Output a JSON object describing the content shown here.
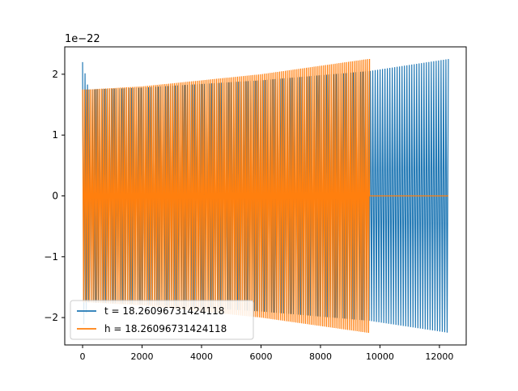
{
  "chart_data": {
    "type": "line",
    "title": "",
    "xlabel": "",
    "ylabel": "",
    "y_offset_label": "1e−22",
    "xlim": [
      -600,
      12900
    ],
    "ylim": [
      -2.45,
      2.45
    ],
    "y_scale_factor": 1e-22,
    "x_ticks": [
      0,
      2000,
      4000,
      6000,
      8000,
      10000,
      12000
    ],
    "x_tick_labels": [
      "0",
      "2000",
      "4000",
      "6000",
      "8000",
      "10000",
      "12000"
    ],
    "y_ticks": [
      -2,
      -1,
      0,
      1,
      2
    ],
    "y_tick_labels": [
      "−2",
      "−1",
      "0",
      "1",
      "2"
    ],
    "grid": false,
    "legend_position": "lower-left",
    "series": [
      {
        "name": "t = 18.26096731424118",
        "color": "#1f77b4",
        "x_range": [
          0,
          12300
        ],
        "description": "oscillating signal, envelope grows toward end",
        "envelope": {
          "x": [
            0,
            200,
            2000,
            6000,
            9600,
            12300
          ],
          "amplitude": [
            2.2,
            1.75,
            1.78,
            1.9,
            2.05,
            2.25
          ]
        },
        "cycles": 150
      },
      {
        "name": "h = 18.26096731424118",
        "color": "#ff7f0e",
        "x_range": [
          0,
          12300
        ],
        "active_until": 9650,
        "envelope": {
          "x": [
            0,
            200,
            2000,
            6000,
            9600
          ],
          "amplitude": [
            1.75,
            1.75,
            1.8,
            2.0,
            2.25
          ]
        },
        "flat_value_after": 0,
        "cycles": 150
      }
    ]
  }
}
